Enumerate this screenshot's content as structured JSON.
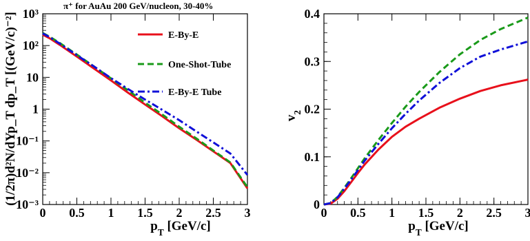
{
  "figure_title": "π⁺ for AuAu 200 GeV/nucleon, 30-40%",
  "colors": {
    "ebye": "#e8101b",
    "one_shot_tube": "#1a9a1a",
    "ebye_tube": "#1010d8",
    "axes": "#000000"
  },
  "chart_data": [
    {
      "type": "line",
      "panel": "left",
      "ylog": true,
      "xlabel": "p_T [GeV/c]",
      "ylabel": "(1/2π)d²N/dYp_T dp_T [(GeV/c)⁻²]",
      "xlim": [
        0,
        3
      ],
      "ylim": [
        0.001,
        1000
      ],
      "x_ticks": [
        "0",
        "0.5",
        "1",
        "1.5",
        "2",
        "2.5",
        "3"
      ],
      "y_ticks": [
        "10⁻³",
        "10⁻²",
        "10⁻¹",
        "1",
        "10",
        "10²",
        "10³"
      ],
      "legend_position": "top-right",
      "legend": [
        "E-By-E",
        "One-Shot-Tube",
        "E-By-E Tube"
      ],
      "series": [
        {
          "name": "E-By-E",
          "style": "solid",
          "x": [
            0.0,
            0.1,
            0.25,
            0.5,
            0.75,
            1.0,
            1.25,
            1.5,
            1.75,
            2.0,
            2.25,
            2.5,
            2.75,
            3.0
          ],
          "y": [
            220,
            170,
            105,
            45,
            19,
            8.0,
            3.3,
            1.4,
            0.6,
            0.25,
            0.11,
            0.047,
            0.02,
            0.0032
          ]
        },
        {
          "name": "One-Shot-Tube",
          "style": "dashed",
          "x": [
            0.0,
            0.1,
            0.25,
            0.5,
            0.75,
            1.0,
            1.25,
            1.5,
            1.75,
            2.0,
            2.25,
            2.5,
            2.75,
            3.0
          ],
          "y": [
            250,
            190,
            120,
            52,
            22,
            9.3,
            3.9,
            1.6,
            0.68,
            0.28,
            0.12,
            0.05,
            0.021,
            0.0035
          ]
        },
        {
          "name": "E-By-E Tube",
          "style": "dashdot",
          "x": [
            0.0,
            0.1,
            0.25,
            0.5,
            0.75,
            1.0,
            1.25,
            1.5,
            1.75,
            2.0,
            2.25,
            2.5,
            2.75,
            3.0
          ],
          "y": [
            240,
            185,
            115,
            50,
            22,
            9.5,
            4.3,
            2.0,
            0.95,
            0.45,
            0.2,
            0.09,
            0.04,
            0.0085
          ]
        }
      ]
    },
    {
      "type": "line",
      "panel": "right",
      "xlabel": "p_T [GeV/c]",
      "ylabel": "v_2",
      "xlim": [
        0,
        3
      ],
      "ylim": [
        0,
        0.4
      ],
      "x_ticks": [
        "0",
        "0.5",
        "1",
        "1.5",
        "2",
        "2.5",
        "3"
      ],
      "y_ticks": [
        "0",
        "0.1",
        "0.2",
        "0.3",
        "0.4"
      ],
      "series": [
        {
          "name": "E-By-E",
          "style": "solid",
          "x": [
            0.0,
            0.1,
            0.2,
            0.3,
            0.4,
            0.5,
            0.6,
            0.8,
            1.0,
            1.2,
            1.4,
            1.7,
            2.0,
            2.3,
            2.6,
            3.0
          ],
          "y": [
            0.0,
            0.002,
            0.012,
            0.028,
            0.047,
            0.066,
            0.084,
            0.115,
            0.142,
            0.163,
            0.18,
            0.203,
            0.222,
            0.238,
            0.25,
            0.262
          ]
        },
        {
          "name": "One-Shot-Tube",
          "style": "dashed",
          "x": [
            0.0,
            0.1,
            0.2,
            0.3,
            0.4,
            0.5,
            0.6,
            0.8,
            1.0,
            1.2,
            1.4,
            1.7,
            2.0,
            2.3,
            2.6,
            3.0
          ],
          "y": [
            0.0,
            0.003,
            0.016,
            0.035,
            0.055,
            0.076,
            0.097,
            0.135,
            0.171,
            0.205,
            0.236,
            0.278,
            0.315,
            0.345,
            0.368,
            0.392
          ]
        },
        {
          "name": "E-By-E Tube",
          "style": "dashdot",
          "x": [
            0.0,
            0.1,
            0.2,
            0.3,
            0.4,
            0.5,
            0.6,
            0.8,
            1.0,
            1.2,
            1.4,
            1.7,
            2.0,
            2.3,
            2.6,
            3.0
          ],
          "y": [
            0.0,
            0.003,
            0.015,
            0.033,
            0.052,
            0.072,
            0.092,
            0.127,
            0.16,
            0.19,
            0.218,
            0.255,
            0.286,
            0.31,
            0.325,
            0.342
          ]
        }
      ]
    }
  ]
}
